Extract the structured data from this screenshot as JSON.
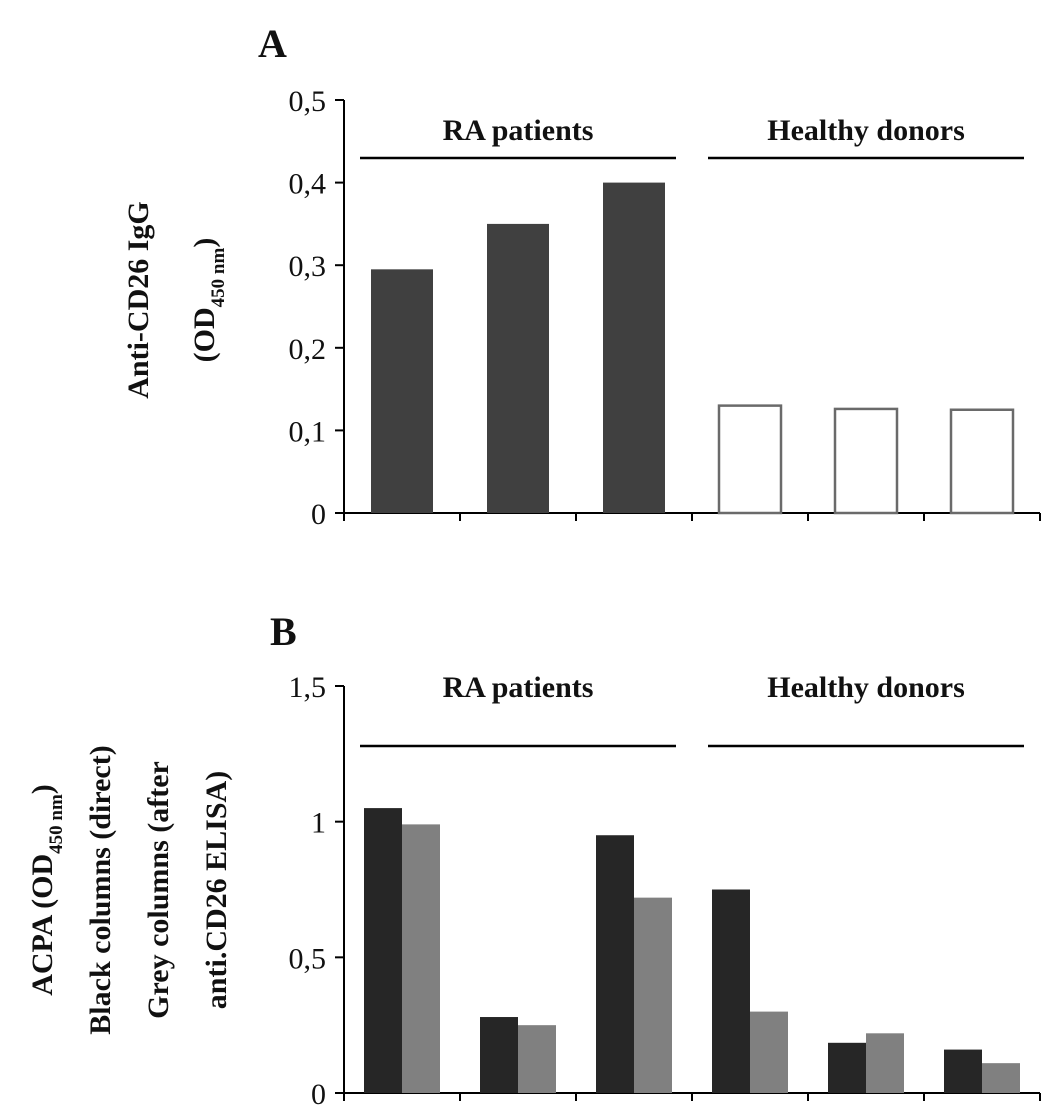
{
  "chart_data": [
    {
      "type": "bar",
      "panel_label": "A",
      "ylabel": {
        "line1": "Anti-CD26 IgG",
        "line2_prefix": "(OD",
        "line2_sub": "450 nm",
        "line2_suffix": ")"
      },
      "ylim": [
        0,
        0.5
      ],
      "y_ticks": [
        {
          "value": 0,
          "label": "0"
        },
        {
          "value": 0.1,
          "label": "0,1"
        },
        {
          "value": 0.2,
          "label": "0,2"
        },
        {
          "value": 0.3,
          "label": "0,3"
        },
        {
          "value": 0.4,
          "label": "0,4"
        },
        {
          "value": 0.5,
          "label": "0,5"
        }
      ],
      "groups": [
        {
          "label": "RA patients",
          "start": 0,
          "end": 3
        },
        {
          "label": "Healthy donors",
          "start": 3,
          "end": 6
        }
      ],
      "series": [
        {
          "values": [
            0.295,
            0.35,
            0.4,
            0.13,
            0.126,
            0.125
          ],
          "colors": [
            "#404040",
            "#404040",
            "#404040",
            "#ffffff",
            "#ffffff",
            "#ffffff"
          ]
        }
      ],
      "grid": false
    },
    {
      "type": "bar",
      "panel_label": "B",
      "ylabel": {
        "line1_prefix": "ACPA (OD",
        "line1_sub": "450 nm",
        "line1_suffix": ")",
        "line2": "Black columns (direct)",
        "line3": "Grey columns (after",
        "line4": "anti.CD26 ELISA)"
      },
      "ylim": [
        0,
        1.5
      ],
      "y_ticks": [
        {
          "value": 0,
          "label": "0"
        },
        {
          "value": 0.5,
          "label": "0,5"
        },
        {
          "value": 1,
          "label": "1"
        },
        {
          "value": 1.5,
          "label": "1,5"
        }
      ],
      "groups": [
        {
          "label": "RA patients",
          "start": 0,
          "end": 3
        },
        {
          "label": "Healthy donors",
          "start": 3,
          "end": 6
        }
      ],
      "series": [
        {
          "values": [
            1.05,
            0.28,
            0.95,
            0.75,
            0.185,
            0.16
          ],
          "color": "#262626"
        },
        {
          "values": [
            0.99,
            0.25,
            0.72,
            0.3,
            0.22,
            0.11
          ],
          "color": "#808080"
        }
      ],
      "grid": false
    }
  ]
}
